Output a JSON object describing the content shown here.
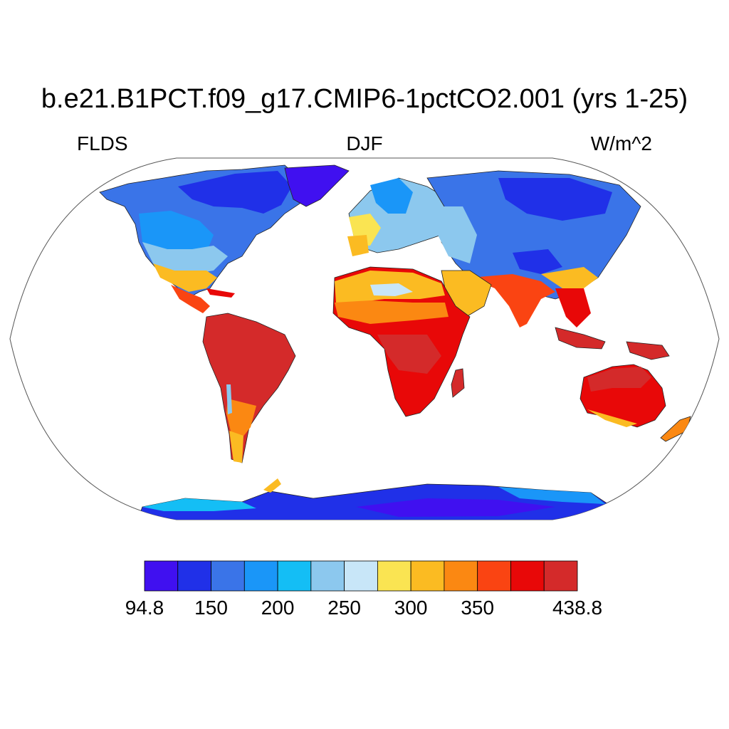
{
  "header": {
    "title": "b.e21.B1PCT.f09_g17.CMIP6-1pctCO2.001 (yrs 1-25)",
    "variable": "FLDS",
    "season": "DJF",
    "units": "W/m^2"
  },
  "colorbar": {
    "colors": [
      "#4010f0",
      "#2030e8",
      "#3a74e8",
      "#1a96f8",
      "#14bef5",
      "#8cc8ee",
      "#c8e6f8",
      "#fae452",
      "#fbbb22",
      "#fb8812",
      "#fa4412",
      "#e80808",
      "#d42a2a"
    ],
    "labels": [
      "94.8",
      "150",
      "200",
      "250",
      "300",
      "350",
      "438.8"
    ]
  },
  "map": {
    "projection": "Robinson",
    "ocean_color": "#ffffff",
    "outline_color": "#555555"
  }
}
